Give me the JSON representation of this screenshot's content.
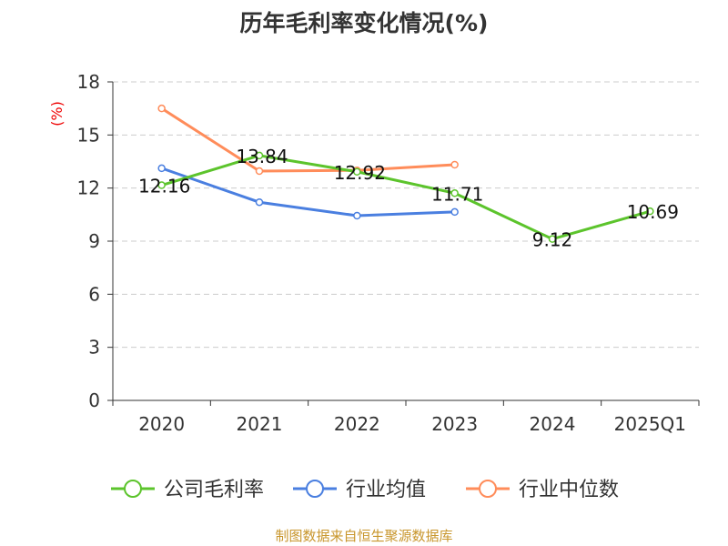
{
  "chart_data": {
    "type": "line",
    "title": "历年毛利率变化情况(%)",
    "ylabel": "(%)",
    "categories": [
      "2020",
      "2021",
      "2022",
      "2023",
      "2024",
      "2025Q1"
    ],
    "ylim": [
      0,
      18
    ],
    "yticks": [
      0,
      3,
      6,
      9,
      12,
      15,
      18
    ],
    "grid": true,
    "legend_position": "bottom",
    "series": [
      {
        "name": "公司毛利率",
        "color": "#5cc42c",
        "values": [
          12.16,
          13.84,
          12.92,
          11.71,
          9.12,
          10.69
        ],
        "labels": [
          "12.16",
          "13.84",
          "12.92",
          "11.71",
          "9.12",
          "10.69"
        ]
      },
      {
        "name": "行业均值",
        "color": "#4a7fe0",
        "values": [
          13.12,
          11.2,
          10.44,
          10.65,
          null,
          null
        ]
      },
      {
        "name": "行业中位数",
        "color": "#ff8c5a",
        "values": [
          16.5,
          12.96,
          13.0,
          13.32,
          null,
          null
        ]
      }
    ]
  },
  "footer": "制图数据来自恒生聚源数据库"
}
